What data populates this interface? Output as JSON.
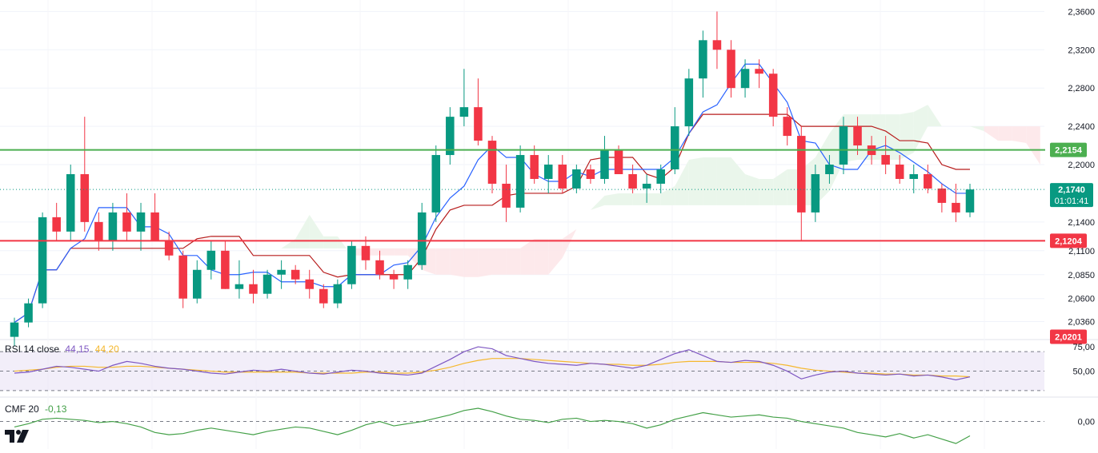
{
  "chart_data": {
    "type": "candlestick",
    "price_axis": {
      "ticks": [
        "2,3600",
        "2,3200",
        "2,2800",
        "2,2400",
        "2,2000",
        "2,1400",
        "2,1100",
        "2,0850",
        "2,0600",
        "2,0360"
      ],
      "tick_values": [
        2.36,
        2.32,
        2.28,
        2.24,
        2.2,
        2.14,
        2.11,
        2.085,
        2.06,
        2.036
      ]
    },
    "current_price": {
      "value": 2.174,
      "label": "2,1740",
      "countdown": "01:01:41",
      "color": "#089981"
    },
    "levels": [
      {
        "name": "resistance",
        "value": 2.2154,
        "label": "2,2154",
        "color": "#4caf50"
      },
      {
        "name": "support",
        "value": 2.1204,
        "label": "2,1204",
        "color": "#f23645"
      },
      {
        "name": "lower",
        "value": 2.0201,
        "label": "2,0201",
        "color": "#f23645"
      }
    ],
    "colors": {
      "up": "#089981",
      "down": "#f23645",
      "tenkan": "#2962ff",
      "kijun": "#b71c1c",
      "cloud_bull": "#e8f5e9",
      "cloud_bear": "#fde7e9",
      "rsi": "#7e57c2",
      "rsi_ma": "#f5b82e",
      "cmf": "#43a047"
    },
    "candles_sample": [
      [
        2.02,
        2.04,
        2.01,
        2.035
      ],
      [
        2.035,
        2.06,
        2.03,
        2.055
      ],
      [
        2.055,
        2.15,
        2.05,
        2.145
      ],
      [
        2.145,
        2.16,
        2.12,
        2.13
      ],
      [
        2.13,
        2.2,
        2.12,
        2.19
      ],
      [
        2.19,
        2.25,
        2.13,
        2.14
      ],
      [
        2.14,
        2.15,
        2.11,
        2.12
      ],
      [
        2.12,
        2.16,
        2.11,
        2.15
      ],
      [
        2.15,
        2.17,
        2.12,
        2.13
      ],
      [
        2.13,
        2.16,
        2.11,
        2.15
      ],
      [
        2.15,
        2.17,
        2.12,
        2.12
      ],
      [
        2.12,
        2.13,
        2.1,
        2.105
      ],
      [
        2.105,
        2.11,
        2.05,
        2.06
      ],
      [
        2.06,
        2.1,
        2.055,
        2.09
      ],
      [
        2.09,
        2.12,
        2.08,
        2.11
      ],
      [
        2.11,
        2.12,
        2.07,
        2.07
      ],
      [
        2.07,
        2.1,
        2.06,
        2.075
      ],
      [
        2.075,
        2.09,
        2.055,
        2.065
      ],
      [
        2.065,
        2.09,
        2.06,
        2.085
      ],
      [
        2.085,
        2.1,
        2.07,
        2.09
      ],
      [
        2.09,
        2.095,
        2.075,
        2.08
      ],
      [
        2.08,
        2.09,
        2.06,
        2.07
      ],
      [
        2.07,
        2.075,
        2.05,
        2.055
      ],
      [
        2.055,
        2.08,
        2.05,
        2.075
      ],
      [
        2.075,
        2.12,
        2.07,
        2.115
      ],
      [
        2.115,
        2.125,
        2.09,
        2.1
      ],
      [
        2.1,
        2.11,
        2.08,
        2.085
      ],
      [
        2.085,
        2.09,
        2.07,
        2.08
      ],
      [
        2.08,
        2.1,
        2.07,
        2.095
      ],
      [
        2.095,
        2.16,
        2.09,
        2.15
      ],
      [
        2.15,
        2.22,
        2.14,
        2.21
      ],
      [
        2.21,
        2.26,
        2.2,
        2.25
      ],
      [
        2.25,
        2.3,
        2.24,
        2.26
      ],
      [
        2.26,
        2.29,
        2.22,
        2.225
      ],
      [
        2.225,
        2.23,
        2.17,
        2.18
      ],
      [
        2.18,
        2.2,
        2.14,
        2.155
      ],
      [
        2.155,
        2.22,
        2.15,
        2.21
      ],
      [
        2.21,
        2.22,
        2.18,
        2.185
      ],
      [
        2.185,
        2.21,
        2.17,
        2.2
      ],
      [
        2.2,
        2.21,
        2.17,
        2.175
      ],
      [
        2.175,
        2.2,
        2.17,
        2.195
      ],
      [
        2.195,
        2.2,
        2.18,
        2.185
      ],
      [
        2.185,
        2.23,
        2.18,
        2.215
      ],
      [
        2.215,
        2.22,
        2.19,
        2.19
      ],
      [
        2.19,
        2.2,
        2.17,
        2.175
      ],
      [
        2.175,
        2.19,
        2.16,
        2.18
      ],
      [
        2.18,
        2.2,
        2.17,
        2.195
      ],
      [
        2.195,
        2.26,
        2.19,
        2.24
      ],
      [
        2.24,
        2.3,
        2.23,
        2.29
      ],
      [
        2.29,
        2.34,
        2.27,
        2.33
      ],
      [
        2.33,
        2.36,
        2.3,
        2.32
      ],
      [
        2.32,
        2.33,
        2.27,
        2.28
      ],
      [
        2.28,
        2.31,
        2.27,
        2.3
      ],
      [
        2.3,
        2.31,
        2.28,
        2.295
      ],
      [
        2.295,
        2.3,
        2.24,
        2.25
      ],
      [
        2.25,
        2.26,
        2.22,
        2.23
      ],
      [
        2.23,
        2.24,
        2.12,
        2.15
      ],
      [
        2.15,
        2.2,
        2.14,
        2.19
      ],
      [
        2.19,
        2.21,
        2.18,
        2.2
      ],
      [
        2.2,
        2.25,
        2.19,
        2.24
      ],
      [
        2.24,
        2.25,
        2.21,
        2.22
      ],
      [
        2.22,
        2.23,
        2.2,
        2.21
      ],
      [
        2.21,
        2.23,
        2.19,
        2.2
      ],
      [
        2.2,
        2.21,
        2.18,
        2.185
      ],
      [
        2.185,
        2.2,
        2.17,
        2.19
      ],
      [
        2.19,
        2.2,
        2.17,
        2.175
      ],
      [
        2.175,
        2.18,
        2.15,
        2.16
      ],
      [
        2.16,
        2.18,
        2.14,
        2.15
      ],
      [
        2.15,
        2.18,
        2.145,
        2.174
      ]
    ],
    "rsi": {
      "label": "RSI",
      "params": "14 close",
      "value": "44,15",
      "ma_value": "44,20",
      "ticks": [
        "75,00",
        "50,00"
      ],
      "tick_values": [
        75,
        50
      ],
      "range": [
        25,
        80
      ],
      "values": [
        48,
        49,
        52,
        55,
        54,
        52,
        50,
        56,
        60,
        58,
        55,
        53,
        52,
        50,
        48,
        47,
        49,
        51,
        50,
        52,
        50,
        48,
        47,
        49,
        51,
        50,
        48,
        47,
        46,
        48,
        55,
        62,
        70,
        75,
        73,
        66,
        63,
        60,
        58,
        57,
        56,
        58,
        57,
        55,
        53,
        56,
        62,
        68,
        72,
        66,
        60,
        59,
        61,
        60,
        56,
        50,
        42,
        46,
        49,
        50,
        48,
        47,
        46,
        47,
        45,
        46,
        44,
        41,
        44.15
      ],
      "ma": [
        50,
        51,
        52,
        54,
        55,
        55,
        54,
        54,
        55,
        55,
        54,
        53,
        52,
        51,
        50,
        49,
        49,
        49,
        49,
        49,
        49,
        48,
        48,
        48,
        48,
        49,
        49,
        48,
        48,
        49,
        51,
        54,
        58,
        61,
        63,
        63,
        63,
        62,
        61,
        60,
        59,
        58,
        57,
        57,
        56,
        56,
        57,
        59,
        60,
        60,
        60,
        59,
        59,
        59,
        58,
        56,
        53,
        51,
        50,
        49,
        48,
        48,
        47,
        47,
        46,
        46,
        45,
        45,
        44.2
      ]
    },
    "cmf": {
      "label": "CMF",
      "params": "20",
      "value": "-0,13",
      "ticks": [
        "0,00"
      ],
      "tick_values": [
        0
      ],
      "range": [
        -0.25,
        0.2
      ],
      "values": [
        -0.05,
        -0.02,
        0.02,
        0.03,
        0.02,
        0.01,
        -0.01,
        0.0,
        -0.02,
        -0.05,
        -0.1,
        -0.12,
        -0.11,
        -0.08,
        -0.06,
        -0.08,
        -0.1,
        -0.12,
        -0.09,
        -0.07,
        -0.05,
        -0.06,
        -0.09,
        -0.12,
        -0.08,
        -0.03,
        0.0,
        -0.04,
        -0.02,
        0.0,
        0.03,
        0.06,
        0.1,
        0.12,
        0.09,
        0.05,
        0.02,
        0.01,
        -0.01,
        0.02,
        0.03,
        0.0,
        0.01,
        0.0,
        -0.02,
        -0.06,
        -0.03,
        0.02,
        0.05,
        0.08,
        0.06,
        0.04,
        0.05,
        0.06,
        0.04,
        0.03,
        0.0,
        -0.02,
        -0.04,
        -0.06,
        -0.1,
        -0.12,
        -0.14,
        -0.11,
        -0.15,
        -0.12,
        -0.16,
        -0.2,
        -0.13
      ]
    }
  },
  "branding": {
    "logo": "tradingview-logo"
  }
}
